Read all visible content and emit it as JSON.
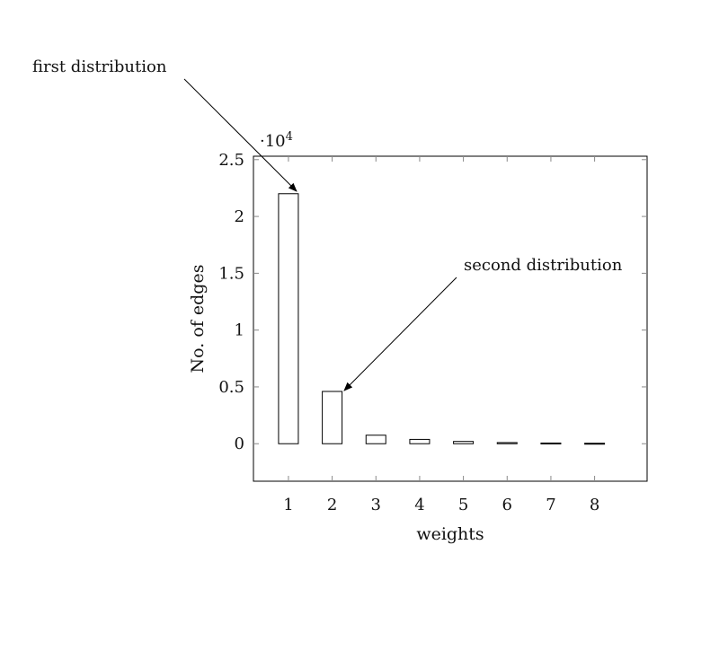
{
  "chart_data": {
    "type": "bar",
    "xlabel": "weights",
    "ylabel": "No. of edges",
    "y_multiplier_label_base": "·10",
    "y_multiplier_label_exp": "4",
    "categories": [
      "1",
      "2",
      "3",
      "4",
      "5",
      "6",
      "7",
      "8"
    ],
    "values": [
      22000,
      4600,
      750,
      380,
      200,
      100,
      60,
      40
    ],
    "ylim": [
      -3300,
      25300
    ],
    "xlim": [
      0.2,
      9.2
    ],
    "y_ticks": [
      0,
      5000,
      10000,
      15000,
      20000,
      25000
    ],
    "y_tick_labels": [
      "0",
      "0.5",
      "1",
      "1.5",
      "2",
      "2.5"
    ],
    "grid": false,
    "bar_fill": "#ffffff",
    "bar_stroke": "#000000",
    "annotations": [
      {
        "text": "first distribution",
        "target_category": "1"
      },
      {
        "text": "second distribution",
        "target_category": "2"
      }
    ]
  }
}
